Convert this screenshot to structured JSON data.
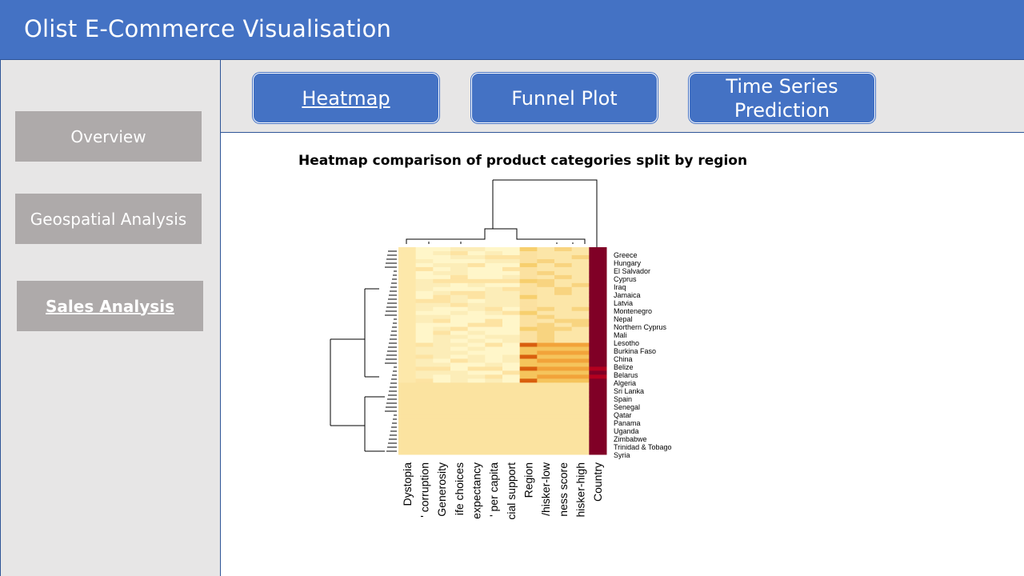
{
  "app": {
    "title": "Olist E-Commerce Visualisation"
  },
  "sidebar": {
    "items": [
      {
        "label": "Overview",
        "active": false
      },
      {
        "label": "Geospatial Analysis",
        "active": false
      },
      {
        "label": "Sales Analysis",
        "active": true
      }
    ]
  },
  "tabs": [
    {
      "label": "Heatmap",
      "active": true
    },
    {
      "label": "Funnel Plot",
      "active": false
    },
    {
      "label": "Time Series Prediction",
      "active": false
    }
  ],
  "colors": {
    "header": "#4472c4",
    "sidebar_bg": "#e7e6e6",
    "side_button": "#aeaaaa",
    "heat_low": "#fff6c9",
    "heat_mid": "#f5c45c",
    "heat_high": "#d95f0e",
    "heat_max": "#800026"
  },
  "chart_data": {
    "type": "heatmap",
    "title": "Heatmap comparison of product categories split by region",
    "columns": [
      "Dystopia",
      "' corruption",
      "Generosity",
      "ife choices",
      "expectancy",
      "' per capita",
      "cial support",
      "Region",
      "/hisker-low",
      "ness score",
      "hisker-high",
      "Country"
    ],
    "row_labels": [
      "Greece",
      "Hungary",
      "El Salvador",
      "Cyprus",
      "Iraq",
      "Jamaica",
      "Latvia",
      "Montenegro",
      "Nepal",
      "Northern Cyprus",
      "Mali",
      "Lesotho",
      "Burkina Faso",
      "China",
      "Belize",
      "Belarus",
      "Algeria",
      "Sri Lanka",
      "Spain",
      "Senegal",
      "Qatar",
      "Panama",
      "Uganda",
      "Zimbabwe",
      "Trinidad & Tobago",
      "Syria"
    ],
    "row_dendrogram": true,
    "column_dendrogram": true
  }
}
